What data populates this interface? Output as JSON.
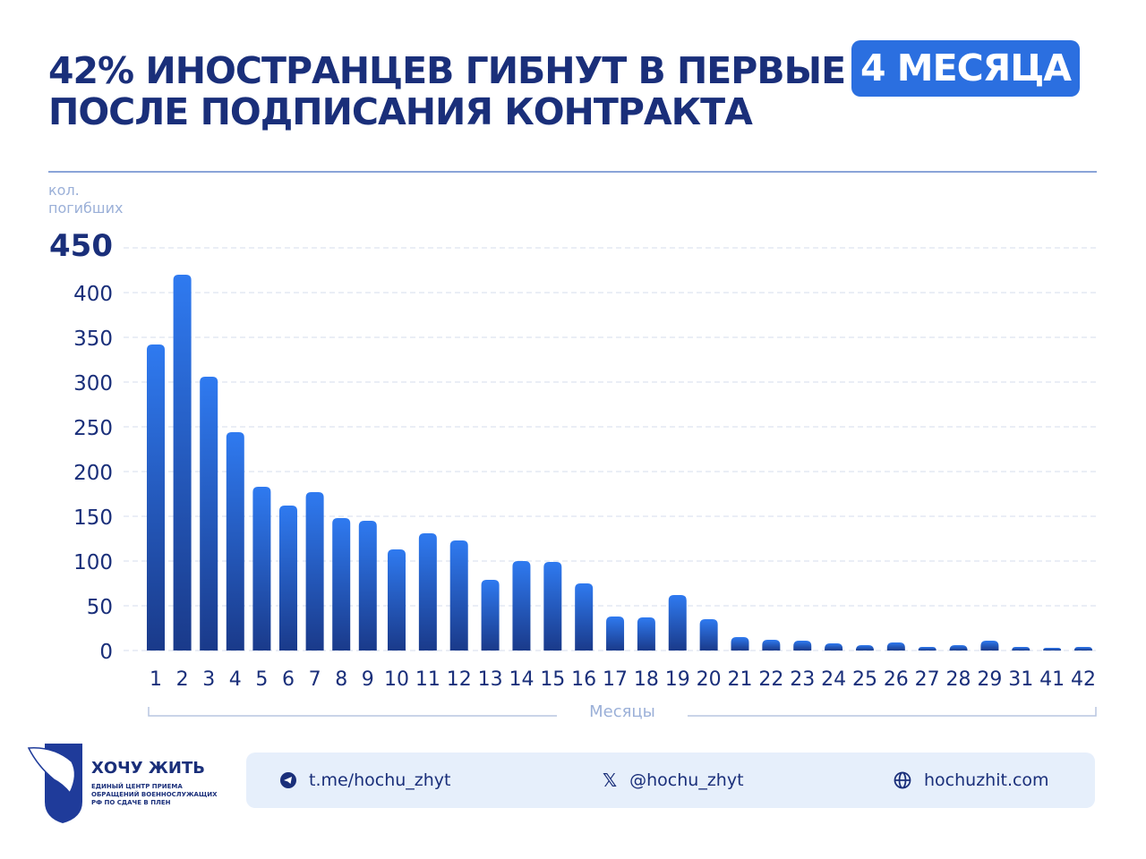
{
  "header": {
    "title_line1": "42% ИНОСТРАНЦЕВ ГИБНУТ В ПЕРВЫЕ",
    "title_line2": "ПОСЛЕ ПОДПИСАНИЯ КОНТРАКТА",
    "badge": "4 МЕСЯЦА"
  },
  "chart_data": {
    "type": "bar",
    "ylabel_line1": "кол.",
    "ylabel_line2": "погибших",
    "xlabel": "Месяцы",
    "ylim": [
      0,
      450
    ],
    "yticks": [
      "0",
      "50",
      "100",
      "150",
      "200",
      "250",
      "300",
      "350",
      "400",
      "450"
    ],
    "grid": true,
    "categories": [
      "1",
      "2",
      "3",
      "4",
      "5",
      "6",
      "7",
      "8",
      "9",
      "10",
      "11",
      "12",
      "13",
      "14",
      "15",
      "16",
      "17",
      "18",
      "19",
      "20",
      "21",
      "22",
      "23",
      "24",
      "25",
      "26",
      "27",
      "28",
      "29",
      "31",
      "41",
      "42"
    ],
    "values": [
      342,
      420,
      306,
      244,
      183,
      162,
      177,
      148,
      145,
      113,
      131,
      123,
      79,
      100,
      99,
      75,
      38,
      37,
      62,
      35,
      15,
      12,
      11,
      8,
      6,
      9,
      4,
      6,
      11,
      4,
      3,
      4
    ],
    "bar_color_top": "#2f7af0",
    "bar_color_bottom": "#1a3a8a"
  },
  "footer": {
    "telegram": "t.me/hochu_zhyt",
    "x": "@hochu_zhyt",
    "web": "hochuzhit.com"
  },
  "logo": {
    "title": "ХОЧУ ЖИТЬ",
    "subtitle1": "ЕДИНЫЙ ЦЕНТР ПРИЕМА",
    "subtitle2": "ОБРАЩЕНИЙ ВОЕННОСЛУЖАЩИХ",
    "subtitle3": "РФ ПО СДАЧЕ В ПЛЕН"
  }
}
